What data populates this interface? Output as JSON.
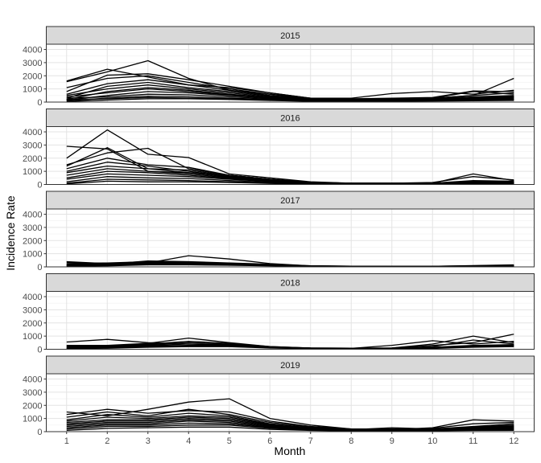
{
  "chart_data": {
    "type": "line",
    "layout": "facet_wrap by year, single column, shared y axis",
    "xlabel": "Month",
    "ylabel": "Incidence Rate",
    "x_ticks": [
      1,
      2,
      3,
      4,
      5,
      6,
      7,
      8,
      9,
      10,
      11,
      12
    ],
    "y_ticks": [
      0,
      1000,
      2000,
      3000,
      4000
    ],
    "ylim": [
      0,
      4400
    ],
    "xlim": [
      0.5,
      12.5
    ],
    "grid": true,
    "line_color": "#000000",
    "panel_header_color": "#d9d9d9",
    "panels": [
      {
        "year": "2015",
        "series": [
          {
            "values": [
              1600,
              2500,
              1900,
              1300,
              1100,
              700,
              300,
              200,
              250,
              300,
              500,
              1800
            ]
          },
          {
            "values": [
              1550,
              2300,
              3150,
              1800,
              900,
              600,
              300,
              250,
              300,
              350,
              850,
              800
            ]
          },
          {
            "values": [
              800,
              2050,
              2150,
              1700,
              1200,
              700,
              300,
              300,
              650,
              800,
              600,
              900
            ]
          },
          {
            "values": [
              1100,
              1800,
              2000,
              1500,
              1000,
              600,
              250,
              200,
              200,
              300,
              800,
              600
            ]
          },
          {
            "values": [
              600,
              1400,
              1700,
              1300,
              900,
              500,
              250,
              200,
              250,
              300,
              500,
              700
            ]
          },
          {
            "values": [
              300,
              1200,
              1500,
              1100,
              800,
              450,
              200,
              150,
              200,
              250,
              400,
              500
            ]
          },
          {
            "values": [
              500,
              1000,
              1300,
              1000,
              700,
              400,
              200,
              150,
              200,
              200,
              350,
              450
            ]
          },
          {
            "values": [
              200,
              800,
              1100,
              900,
              600,
              350,
              150,
              120,
              150,
              200,
              300,
              400
            ]
          },
          {
            "values": [
              400,
              700,
              1000,
              800,
              550,
              300,
              150,
              120,
              150,
              180,
              280,
              350
            ]
          },
          {
            "values": [
              150,
              500,
              800,
              700,
              500,
              300,
              150,
              100,
              130,
              150,
              250,
              300
            ]
          },
          {
            "values": [
              300,
              400,
              600,
              550,
              400,
              250,
              120,
              100,
              120,
              150,
              200,
              250
            ]
          },
          {
            "values": [
              100,
              300,
              450,
              400,
              300,
              200,
              100,
              80,
              100,
              120,
              180,
              200
            ]
          },
          {
            "values": [
              200,
              250,
              350,
              300,
              250,
              150,
              80,
              60,
              80,
              100,
              150,
              180
            ]
          },
          {
            "values": [
              50,
              150,
              250,
              250,
              200,
              120,
              60,
              50,
              60,
              80,
              100,
              120
            ]
          }
        ]
      },
      {
        "year": "2016",
        "series": [
          {
            "values": [
              2900,
              2700,
              1000,
              900,
              700,
              400,
              150,
              100,
              100,
              100,
              800,
              300
            ]
          },
          {
            "values": [
              2000,
              4150,
              2300,
              2050,
              800,
              500,
              200,
              100,
              100,
              150,
              600,
              350
            ]
          },
          {
            "values": [
              1500,
              2400,
              2750,
              1200,
              700,
              400,
              150,
              100,
              100,
              100,
              300,
              250
            ]
          },
          {
            "values": [
              1400,
              2800,
              1200,
              1100,
              650,
              350,
              150,
              100,
              100,
              100,
              250,
              200
            ]
          },
          {
            "values": [
              1200,
              2000,
              1500,
              1300,
              700,
              400,
              150,
              100,
              80,
              80,
              200,
              200
            ]
          },
          {
            "values": [
              1000,
              1700,
              1400,
              1000,
              600,
              350,
              130,
              90,
              80,
              80,
              180,
              180
            ]
          },
          {
            "values": [
              900,
              1400,
              1200,
              900,
              550,
              300,
              120,
              80,
              70,
              70,
              150,
              150
            ]
          },
          {
            "values": [
              700,
              1200,
              1000,
              800,
              500,
              280,
              110,
              70,
              60,
              60,
              130,
              130
            ]
          },
          {
            "values": [
              500,
              1000,
              900,
              700,
              450,
              250,
              100,
              60,
              50,
              50,
              110,
              110
            ]
          },
          {
            "values": [
              400,
              800,
              700,
              600,
              400,
              220,
              90,
              50,
              40,
              40,
              90,
              90
            ]
          },
          {
            "values": [
              200,
              600,
              500,
              450,
              300,
              180,
              70,
              40,
              30,
              30,
              70,
              70
            ]
          },
          {
            "values": [
              100,
              400,
              350,
              300,
              200,
              120,
              50,
              30,
              20,
              20,
              50,
              50
            ]
          },
          {
            "values": [
              50,
              250,
              200,
              200,
              150,
              80,
              30,
              20,
              15,
              15,
              30,
              30
            ]
          }
        ]
      },
      {
        "year": "2017",
        "series": [
          {
            "values": [
              400,
              250,
              300,
              850,
              600,
              250,
              80,
              50,
              40,
              40,
              100,
              150
            ]
          },
          {
            "values": [
              350,
              200,
              450,
              400,
              300,
              200,
              80,
              50,
              40,
              40,
              80,
              120
            ]
          },
          {
            "values": [
              250,
              300,
              400,
              350,
              280,
              180,
              70,
              40,
              30,
              30,
              70,
              100
            ]
          },
          {
            "values": [
              200,
              250,
              350,
              300,
              250,
              150,
              60,
              40,
              30,
              30,
              60,
              90
            ]
          },
          {
            "values": [
              150,
              200,
              300,
              280,
              220,
              130,
              50,
              30,
              25,
              25,
              50,
              80
            ]
          },
          {
            "values": [
              100,
              150,
              250,
              250,
              200,
              120,
              45,
              30,
              20,
              20,
              45,
              70
            ]
          },
          {
            "values": [
              80,
              100,
              200,
              200,
              150,
              100,
              40,
              25,
              20,
              20,
              40,
              60
            ]
          },
          {
            "values": [
              50,
              80,
              150,
              150,
              120,
              80,
              30,
              20,
              15,
              15,
              30,
              50
            ]
          }
        ]
      },
      {
        "year": "2018",
        "series": [
          {
            "values": [
              550,
              750,
              500,
              400,
              300,
              150,
              100,
              80,
              100,
              400,
              1000,
              500
            ]
          },
          {
            "values": [
              300,
              300,
              450,
              850,
              500,
              200,
              100,
              80,
              100,
              300,
              500,
              1150
            ]
          },
          {
            "values": [
              250,
              250,
              400,
              600,
              450,
              200,
              90,
              70,
              300,
              650,
              400,
              600
            ]
          },
          {
            "values": [
              200,
              200,
              350,
              500,
              400,
              180,
              80,
              60,
              80,
              200,
              700,
              400
            ]
          },
          {
            "values": [
              150,
              200,
              300,
              400,
              350,
              150,
              70,
              60,
              70,
              150,
              300,
              350
            ]
          },
          {
            "values": [
              100,
              150,
              250,
              300,
              300,
              130,
              60,
              50,
              60,
              100,
              250,
              300
            ]
          },
          {
            "values": [
              80,
              100,
              200,
              250,
              250,
              110,
              50,
              40,
              50,
              80,
              200,
              250
            ]
          },
          {
            "values": [
              50,
              80,
              150,
              200,
              200,
              90,
              40,
              30,
              40,
              60,
              150,
              200
            ]
          }
        ]
      },
      {
        "year": "2019",
        "series": [
          {
            "values": [
              1500,
              1200,
              1700,
              2250,
              2500,
              1000,
              500,
              200,
              150,
              300,
              900,
              800
            ]
          },
          {
            "values": [
              1300,
              1700,
              1400,
              1600,
              1500,
              800,
              400,
              200,
              200,
              250,
              600,
              700
            ]
          },
          {
            "values": [
              1100,
              1500,
              1200,
              1700,
              1300,
              700,
              350,
              150,
              300,
              200,
              400,
              600
            ]
          },
          {
            "values": [
              900,
              1300,
              1100,
              1400,
              1200,
              600,
              300,
              150,
              150,
              200,
              350,
              500
            ]
          },
          {
            "values": [
              800,
              1100,
              1000,
              1200,
              1100,
              550,
              280,
              130,
              130,
              180,
              300,
              450
            ]
          },
          {
            "values": [
              700,
              900,
              900,
              1100,
              1000,
              500,
              250,
              120,
              120,
              150,
              280,
              400
            ]
          },
          {
            "values": [
              600,
              800,
              800,
              1000,
              900,
              450,
              220,
              100,
              100,
              130,
              250,
              350
            ]
          },
          {
            "values": [
              500,
              700,
              700,
              900,
              800,
              400,
              200,
              90,
              90,
              110,
              200,
              300
            ]
          },
          {
            "values": [
              400,
              600,
              600,
              800,
              700,
              350,
              180,
              80,
              80,
              100,
              180,
              250
            ]
          },
          {
            "values": [
              300,
              500,
              500,
              650,
              600,
              300,
              150,
              70,
              70,
              90,
              150,
              200
            ]
          },
          {
            "values": [
              200,
              400,
              400,
              500,
              500,
              250,
              120,
              60,
              60,
              80,
              120,
              150
            ]
          },
          {
            "values": [
              100,
              250,
              300,
              350,
              350,
              180,
              90,
              50,
              50,
              60,
              90,
              100
            ]
          }
        ]
      }
    ]
  }
}
